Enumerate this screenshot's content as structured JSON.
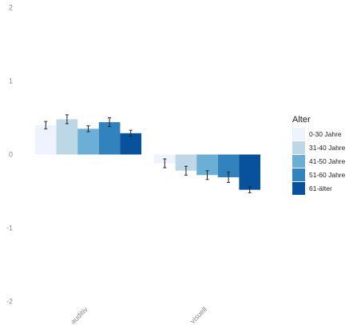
{
  "chart_data": {
    "type": "bar",
    "categories": [
      "auditiv",
      "visuell"
    ],
    "ylim": [
      -2,
      2
    ],
    "yticks": [
      -2,
      -1,
      0,
      1,
      2
    ],
    "grid": false,
    "legend_position": "right",
    "legend_title": "Alter",
    "series": [
      {
        "name": "0-30 Jahre",
        "color": "#eff3ff",
        "values": [
          0.4,
          -0.12
        ],
        "err": [
          0.05,
          0.06
        ]
      },
      {
        "name": "31-40 Jahre",
        "color": "#bdd7e7",
        "values": [
          0.48,
          -0.22
        ],
        "err": [
          0.06,
          0.06
        ]
      },
      {
        "name": "41-50 Jahre",
        "color": "#6baed6",
        "values": [
          0.35,
          -0.28
        ],
        "err": [
          0.04,
          0.06
        ]
      },
      {
        "name": "51-60 Jahre",
        "color": "#3182bd",
        "values": [
          0.44,
          -0.31
        ],
        "err": [
          0.06,
          0.07
        ]
      },
      {
        "name": "61-älter",
        "color": "#08519c",
        "values": [
          0.29,
          -0.48
        ],
        "err": [
          0.04,
          0.04
        ]
      }
    ]
  }
}
